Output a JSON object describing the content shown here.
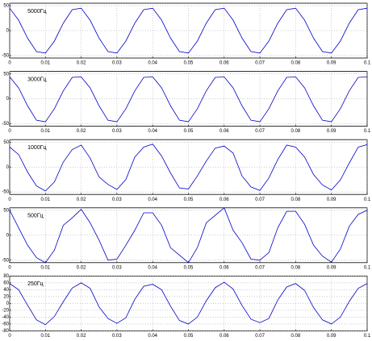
{
  "chart_data": [
    {
      "type": "line",
      "label": "5000Гц",
      "color": "#0000cc",
      "grid": true,
      "xlim": [
        0,
        0.1
      ],
      "xticks": [
        0,
        0.01,
        0.02,
        0.03,
        0.04,
        0.05,
        0.06,
        0.07,
        0.08,
        0.09,
        0.1
      ],
      "ylim": [
        -55,
        55
      ],
      "yticks": [
        -50,
        0,
        50
      ],
      "x": [
        0,
        0.0025,
        0.005,
        0.0075,
        0.01,
        0.0125,
        0.015,
        0.0175,
        0.02,
        0.0225,
        0.025,
        0.0275,
        0.03,
        0.0325,
        0.035,
        0.0375,
        0.04,
        0.0425,
        0.045,
        0.0475,
        0.05,
        0.0525,
        0.055,
        0.0575,
        0.06,
        0.0625,
        0.065,
        0.0675,
        0.07,
        0.0725,
        0.075,
        0.0775,
        0.08,
        0.0825,
        0.085,
        0.0875,
        0.09,
        0.0925,
        0.095,
        0.0975,
        0.1
      ],
      "values": [
        45,
        21,
        -15,
        -42,
        -45,
        -21,
        15,
        42,
        45,
        21,
        -15,
        -42,
        -45,
        -21,
        15,
        42,
        45,
        21,
        -15,
        -42,
        -45,
        -21,
        15,
        42,
        45,
        21,
        -15,
        -42,
        -45,
        -21,
        15,
        42,
        45,
        21,
        -15,
        -42,
        -45,
        -21,
        15,
        42,
        45
      ]
    },
    {
      "type": "line",
      "label": "3000Гц",
      "color": "#0000cc",
      "grid": true,
      "xlim": [
        0,
        0.1
      ],
      "xticks": [
        0,
        0.01,
        0.02,
        0.03,
        0.04,
        0.05,
        0.06,
        0.07,
        0.08,
        0.09,
        0.1
      ],
      "ylim": [
        -55,
        55
      ],
      "yticks": [
        -50,
        0,
        50
      ],
      "x": [
        0,
        0.0025,
        0.005,
        0.0075,
        0.01,
        0.0125,
        0.015,
        0.0175,
        0.02,
        0.0225,
        0.025,
        0.0275,
        0.03,
        0.0325,
        0.035,
        0.0375,
        0.04,
        0.0425,
        0.045,
        0.0475,
        0.05,
        0.0525,
        0.055,
        0.0575,
        0.06,
        0.0625,
        0.065,
        0.0675,
        0.07,
        0.0725,
        0.075,
        0.0775,
        0.08,
        0.0825,
        0.085,
        0.0875,
        0.09,
        0.0925,
        0.095,
        0.0975,
        0.1
      ],
      "values": [
        44,
        22,
        -14,
        -43,
        -46,
        -20,
        16,
        43,
        44,
        22,
        -14,
        -43,
        -46,
        -20,
        16,
        43,
        44,
        22,
        -14,
        -43,
        -46,
        -20,
        16,
        43,
        44,
        22,
        -14,
        -43,
        -46,
        -20,
        16,
        43,
        44,
        22,
        -14,
        -43,
        -46,
        -20,
        16,
        43,
        44
      ]
    },
    {
      "type": "line",
      "label": "1000Гц",
      "color": "#0000cc",
      "grid": true,
      "xlim": [
        0,
        0.1
      ],
      "xticks": [
        0,
        0.01,
        0.02,
        0.03,
        0.04,
        0.05,
        0.06,
        0.07,
        0.08,
        0.09,
        0.1
      ],
      "ylim": [
        -55,
        55
      ],
      "yticks": [
        -50,
        0,
        50
      ],
      "x": [
        0,
        0.0025,
        0.005,
        0.0075,
        0.01,
        0.0125,
        0.015,
        0.0175,
        0.02,
        0.0225,
        0.025,
        0.0275,
        0.03,
        0.0325,
        0.035,
        0.0375,
        0.04,
        0.0425,
        0.045,
        0.0475,
        0.05,
        0.0525,
        0.055,
        0.0575,
        0.06,
        0.0625,
        0.065,
        0.0675,
        0.07,
        0.0725,
        0.075,
        0.0775,
        0.08,
        0.0825,
        0.085,
        0.0875,
        0.09,
        0.0925,
        0.095,
        0.0975,
        0.1
      ],
      "values": [
        40,
        25,
        -10,
        -38,
        -48,
        -30,
        10,
        35,
        44,
        18,
        -20,
        -35,
        -45,
        -25,
        20,
        40,
        46,
        22,
        -12,
        -42,
        -44,
        -18,
        12,
        38,
        42,
        28,
        -18,
        -40,
        -47,
        -22,
        15,
        44,
        40,
        20,
        -15,
        -36,
        -46,
        -26,
        8,
        40,
        45
      ]
    },
    {
      "type": "line",
      "label": "500Гц",
      "color": "#0000cc",
      "grid": true,
      "xlim": [
        0,
        0.1
      ],
      "xticks": [
        0,
        0.01,
        0.02,
        0.03,
        0.04,
        0.05,
        0.06,
        0.07,
        0.08,
        0.09,
        0.1
      ],
      "ylim": [
        -55,
        55
      ],
      "yticks": [
        -50,
        0,
        50
      ],
      "x": [
        0,
        0.0025,
        0.005,
        0.0075,
        0.01,
        0.0125,
        0.015,
        0.0175,
        0.02,
        0.0225,
        0.025,
        0.0275,
        0.03,
        0.0325,
        0.035,
        0.0375,
        0.04,
        0.0425,
        0.045,
        0.0475,
        0.05,
        0.0525,
        0.055,
        0.0575,
        0.06,
        0.0625,
        0.065,
        0.0675,
        0.07,
        0.0725,
        0.075,
        0.0775,
        0.08,
        0.0825,
        0.085,
        0.0875,
        0.09,
        0.0925,
        0.095,
        0.0975,
        0.1
      ],
      "values": [
        50,
        15,
        -20,
        -45,
        -55,
        -30,
        20,
        35,
        52,
        25,
        -10,
        -50,
        -48,
        -20,
        10,
        45,
        45,
        20,
        -25,
        -40,
        -55,
        -25,
        25,
        40,
        55,
        10,
        -15,
        -48,
        -50,
        -35,
        15,
        48,
        48,
        22,
        -20,
        -42,
        -54,
        -28,
        18,
        42,
        50
      ]
    },
    {
      "type": "line",
      "label": "250Гц",
      "color": "#0000cc",
      "grid": true,
      "xlim": [
        0,
        0.1
      ],
      "xticks": [
        0,
        0.01,
        0.02,
        0.03,
        0.04,
        0.05,
        0.06,
        0.07,
        0.08,
        0.09,
        0.1
      ],
      "ylim": [
        -80,
        80
      ],
      "yticks": [
        -80,
        -60,
        -40,
        -20,
        0,
        20,
        40,
        60,
        80
      ],
      "x": [
        0,
        0.0025,
        0.005,
        0.0075,
        0.01,
        0.0125,
        0.015,
        0.0175,
        0.02,
        0.0225,
        0.025,
        0.0275,
        0.03,
        0.0325,
        0.035,
        0.0375,
        0.04,
        0.0425,
        0.045,
        0.0475,
        0.05,
        0.0525,
        0.055,
        0.0575,
        0.06,
        0.0625,
        0.065,
        0.0675,
        0.07,
        0.0725,
        0.075,
        0.0775,
        0.08,
        0.0825,
        0.085,
        0.0875,
        0.09,
        0.0925,
        0.095,
        0.0975,
        0.1
      ],
      "values": [
        58,
        40,
        -5,
        -48,
        -62,
        -38,
        5,
        45,
        60,
        44,
        -10,
        -44,
        -58,
        -42,
        12,
        50,
        56,
        40,
        -8,
        -50,
        -60,
        -40,
        8,
        46,
        62,
        42,
        -6,
        -46,
        -56,
        -44,
        10,
        48,
        58,
        38,
        -12,
        -48,
        -60,
        -40,
        6,
        44,
        58
      ]
    }
  ]
}
